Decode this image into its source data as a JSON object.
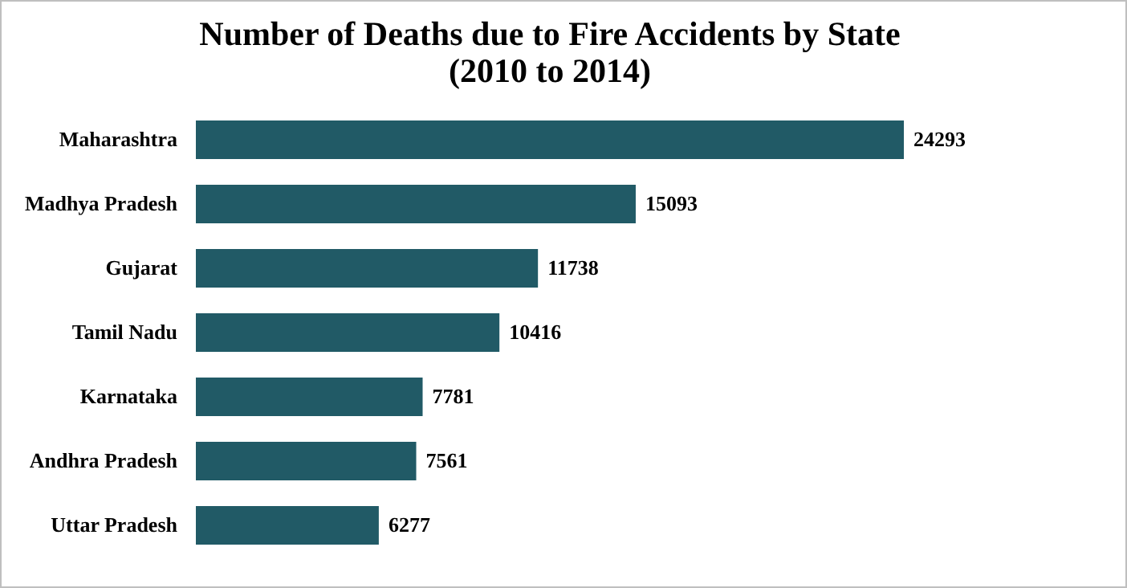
{
  "chart_data": {
    "type": "bar",
    "orientation": "horizontal",
    "title": "Number of Deaths due to Fire Accidents by State",
    "subtitle": "(2010 to 2014)",
    "categories": [
      "Maharashtra",
      "Madhya Pradesh",
      "Gujarat",
      "Tamil Nadu",
      "Karnataka",
      "Andhra Pradesh",
      "Uttar Pradesh"
    ],
    "values": [
      24293,
      15093,
      11738,
      10416,
      7781,
      7561,
      6277
    ],
    "color": "#215a66",
    "data_labels": true
  }
}
